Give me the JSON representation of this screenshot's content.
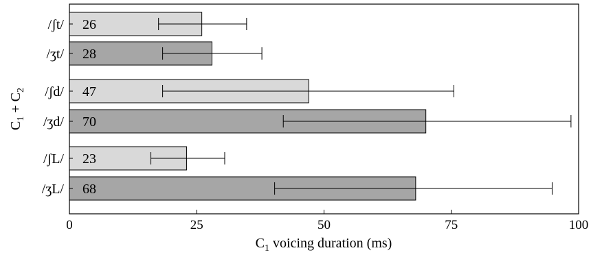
{
  "chart_data": {
    "type": "bar",
    "orientation": "horizontal",
    "title": "",
    "xlabel_parts": [
      "C",
      "1",
      " voicing duration (ms)"
    ],
    "ylabel_parts": [
      "C",
      "1",
      " + C",
      "2"
    ],
    "xlim": [
      0,
      100
    ],
    "x_ticks": [
      0,
      25,
      50,
      75,
      100
    ],
    "grid": false,
    "legend": "none",
    "categories": [
      "/ʃt/",
      "/ʒt/",
      "/ʃd/",
      "/ʒd/",
      "/ʃL/",
      "/ʒL/"
    ],
    "values": [
      26,
      28,
      47,
      70,
      23,
      68
    ],
    "value_labels": [
      "26",
      "28",
      "47",
      "70",
      "23",
      "68"
    ],
    "error_low": [
      17.5,
      18.3,
      18.3,
      42,
      16,
      40.3
    ],
    "error_high": [
      34.8,
      37.8,
      75.5,
      98.5,
      30.5,
      94.8
    ],
    "bar_colors": [
      "#d9d9d9",
      "#a6a6a6",
      "#d9d9d9",
      "#a6a6a6",
      "#d9d9d9",
      "#a6a6a6"
    ]
  }
}
